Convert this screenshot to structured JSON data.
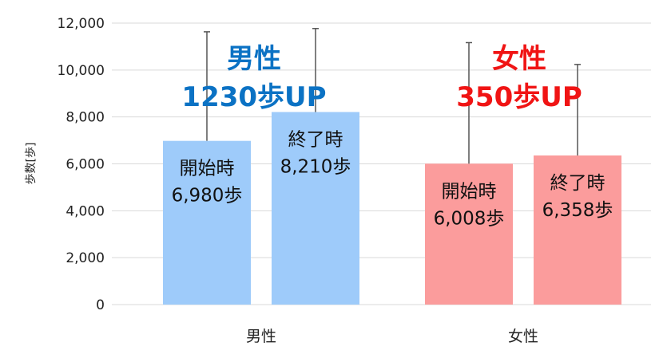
{
  "chart_data": {
    "type": "bar",
    "ylabel": "歩数[歩]",
    "ylim": [
      0,
      12000
    ],
    "yticks": [
      0,
      2000,
      4000,
      6000,
      8000,
      10000,
      12000
    ],
    "ytick_labels": [
      "0",
      "2,000",
      "4,000",
      "6,000",
      "8,000",
      "10,000",
      "12,000"
    ],
    "grid": true,
    "categories": [
      "男性",
      "女性"
    ],
    "series": [
      {
        "label_line1": "開始時",
        "values": [
          6980,
          6008
        ],
        "errors": [
          4650,
          5160
        ],
        "value_labels": [
          "6,980歩",
          "6,008歩"
        ]
      },
      {
        "label_line1": "終了時",
        "values": [
          8210,
          6358
        ],
        "errors": [
          3560,
          3880
        ],
        "value_labels": [
          "8,210歩",
          "6,358歩"
        ]
      }
    ],
    "colors": {
      "男性": "#9ecbfa",
      "女性": "#fb9c9c",
      "grid": "#d9d9d9",
      "error_bar": "#555555"
    },
    "annotations": [
      {
        "category": "男性",
        "line1": "男性",
        "line2": "1230歩UP",
        "color": "#0b72c4"
      },
      {
        "category": "女性",
        "line1": "女性",
        "line2": "350歩UP",
        "color": "#f01414"
      }
    ]
  }
}
